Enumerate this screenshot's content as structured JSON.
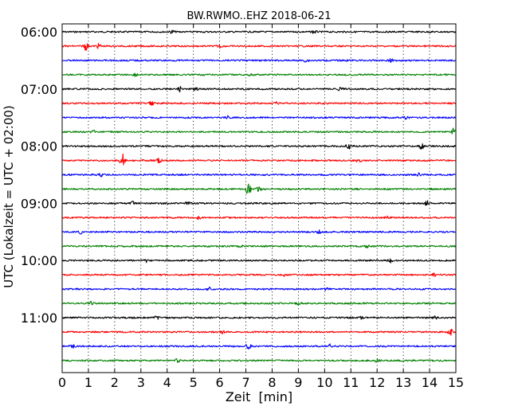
{
  "chart_data": {
    "type": "line",
    "subtype": "seismogram-dayplot",
    "title": "BW.RWMO..EHZ 2018-06-21",
    "xlabel": "Zeit  [min]",
    "ylabel": "UTC (Lokalzeit = UTC + 02:00)",
    "xlim": [
      0,
      15
    ],
    "xticks": [
      "0",
      "1",
      "2",
      "3",
      "4",
      "5",
      "6",
      "7",
      "8",
      "9",
      "10",
      "11",
      "12",
      "13",
      "14",
      "15"
    ],
    "yticks": [
      "06:00",
      "07:00",
      "08:00",
      "09:00",
      "10:00",
      "11:00"
    ],
    "grid": "vertical dotted at each minute",
    "trace_interval_minutes": 15,
    "trace_colors": [
      "#000000",
      "#ff0000",
      "#0000ff",
      "#008000"
    ],
    "series": [
      {
        "start": "06:00",
        "events": [
          [
            4.2,
            2
          ],
          [
            9.6,
            2
          ]
        ]
      },
      {
        "start": "06:15",
        "events": [
          [
            0.9,
            5
          ],
          [
            1.4,
            3
          ],
          [
            6.0,
            2
          ]
        ]
      },
      {
        "start": "06:30",
        "events": [
          [
            9.3,
            2
          ],
          [
            12.5,
            2
          ]
        ]
      },
      {
        "start": "06:45",
        "events": [
          [
            2.8,
            2
          ],
          [
            7.2,
            2
          ]
        ]
      },
      {
        "start": "07:00",
        "events": [
          [
            4.5,
            3
          ],
          [
            10.6,
            2
          ],
          [
            5.1,
            2
          ]
        ]
      },
      {
        "start": "07:15",
        "events": [
          [
            3.4,
            2
          ],
          [
            8.2,
            2
          ]
        ]
      },
      {
        "start": "07:30",
        "events": [
          [
            6.3,
            2
          ],
          [
            13.1,
            2
          ]
        ]
      },
      {
        "start": "07:45",
        "events": [
          [
            1.2,
            2
          ],
          [
            14.9,
            4
          ]
        ]
      },
      {
        "start": "08:00",
        "events": [
          [
            10.9,
            4
          ],
          [
            13.7,
            5
          ]
        ]
      },
      {
        "start": "08:15",
        "events": [
          [
            2.3,
            10
          ],
          [
            3.7,
            3
          ],
          [
            11.3,
            2
          ]
        ]
      },
      {
        "start": "08:30",
        "events": [
          [
            1.5,
            2
          ],
          [
            13.6,
            2
          ]
        ]
      },
      {
        "start": "08:45",
        "events": [
          [
            7.1,
            11
          ],
          [
            7.5,
            3
          ]
        ]
      },
      {
        "start": "09:00",
        "events": [
          [
            2.7,
            2
          ],
          [
            13.9,
            3
          ],
          [
            4.8,
            2
          ]
        ]
      },
      {
        "start": "09:15",
        "events": [
          [
            5.2,
            2
          ],
          [
            12.4,
            2
          ]
        ]
      },
      {
        "start": "09:30",
        "events": [
          [
            0.7,
            2
          ],
          [
            9.8,
            2
          ]
        ]
      },
      {
        "start": "09:45",
        "events": [
          [
            6.8,
            2
          ],
          [
            11.6,
            2
          ]
        ]
      },
      {
        "start": "10:00",
        "events": [
          [
            3.2,
            2
          ],
          [
            12.5,
            3
          ]
        ]
      },
      {
        "start": "10:15",
        "events": [
          [
            8.5,
            2
          ],
          [
            14.2,
            2
          ]
        ]
      },
      {
        "start": "10:30",
        "events": [
          [
            5.6,
            2
          ],
          [
            10.1,
            2
          ]
        ]
      },
      {
        "start": "10:45",
        "events": [
          [
            1.1,
            2
          ],
          [
            9.0,
            2
          ]
        ]
      },
      {
        "start": "11:00",
        "events": [
          [
            3.6,
            2
          ],
          [
            11.4,
            2
          ],
          [
            14.2,
            2
          ]
        ]
      },
      {
        "start": "11:15",
        "events": [
          [
            6.1,
            2
          ],
          [
            14.8,
            4
          ]
        ]
      },
      {
        "start": "11:30",
        "events": [
          [
            7.1,
            3
          ],
          [
            10.2,
            3
          ],
          [
            0.4,
            2
          ]
        ]
      },
      {
        "start": "11:45",
        "events": [
          [
            4.4,
            2
          ],
          [
            12.0,
            2
          ]
        ]
      }
    ]
  }
}
